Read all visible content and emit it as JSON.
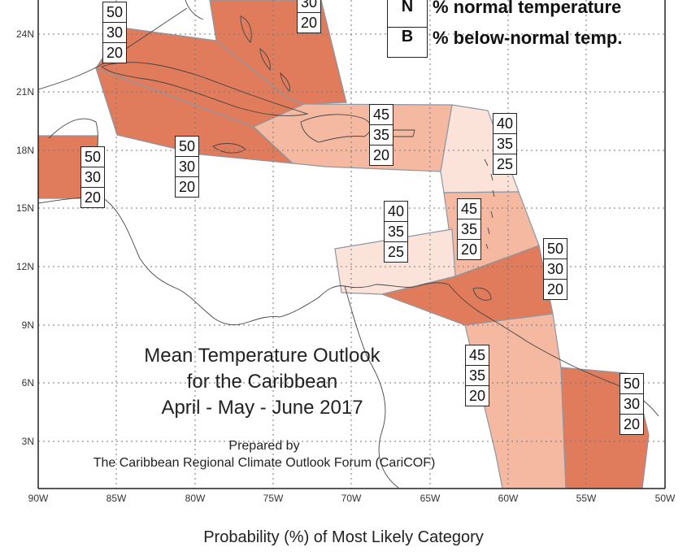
{
  "map": {
    "title_lines": [
      "Mean Temperature Outlook",
      "for the Caribbean",
      "April - May - June 2017"
    ],
    "prepared_by": "Prepared by",
    "organization": "The Caribbean Regional Climate Outlook Forum (CariCOF)",
    "caption": "Probability (%) of Most Likely Category",
    "colors": {
      "high": "#e07b5c",
      "medium": "#f5b9a1",
      "low": "#fbe3da",
      "region_border": "#8d97a3",
      "grid": "#777777",
      "coast": "#444444"
    },
    "legend": [
      {
        "key": "N",
        "label": "% normal temperature"
      },
      {
        "key": "B",
        "label": "% below-normal temp."
      }
    ],
    "latitude_labels": [
      "24N",
      "21N",
      "18N",
      "15N",
      "12N",
      "9N",
      "6N",
      "3N"
    ],
    "longitude_labels": [
      "90W",
      "85W",
      "80W",
      "75W",
      "70W",
      "65W",
      "60W",
      "55W",
      "50W"
    ],
    "probability_boxes": [
      {
        "region": "western-cuba-top",
        "values": [
          "50",
          "30",
          "20"
        ]
      },
      {
        "region": "bahamas",
        "values": [
          "30",
          "20"
        ]
      },
      {
        "region": "jamaica-cayman",
        "values": [
          "50",
          "30",
          "20"
        ]
      },
      {
        "region": "belize",
        "values": [
          "50",
          "30",
          "20"
        ]
      },
      {
        "region": "hispaniola-puerto-rico",
        "values": [
          "45",
          "35",
          "20"
        ]
      },
      {
        "region": "northern-lesser-antilles",
        "values": [
          "40",
          "35",
          "25"
        ]
      },
      {
        "region": "southern-lesser-antilles",
        "values": [
          "45",
          "35",
          "20"
        ]
      },
      {
        "region": "abc-islands",
        "values": [
          "40",
          "35",
          "25"
        ]
      },
      {
        "region": "trinidad-tobago",
        "values": [
          "50",
          "30",
          "20"
        ]
      },
      {
        "region": "guyana",
        "values": [
          "45",
          "35",
          "20"
        ]
      },
      {
        "region": "suriname",
        "values": [
          "50",
          "30",
          "20"
        ]
      }
    ]
  }
}
